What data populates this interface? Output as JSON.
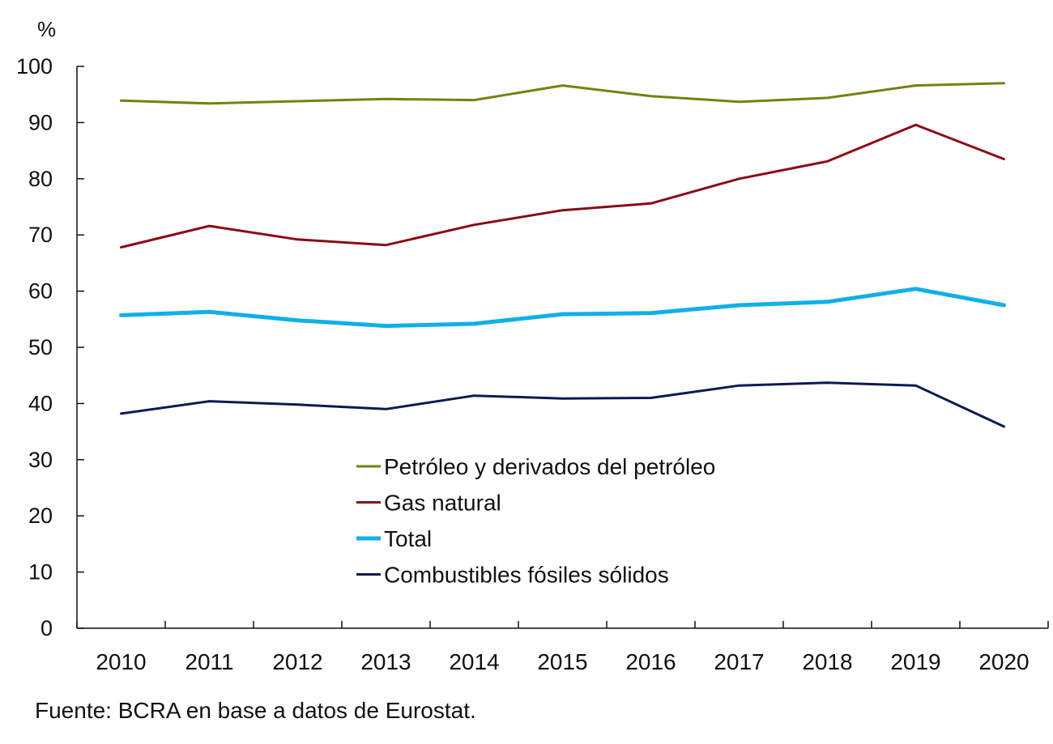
{
  "chart_data": {
    "type": "line",
    "y_unit": "%",
    "ylim": [
      0,
      100
    ],
    "y_ticks": [
      0,
      10,
      20,
      30,
      40,
      50,
      60,
      70,
      80,
      90,
      100
    ],
    "categories": [
      "2010",
      "2011",
      "2012",
      "2013",
      "2014",
      "2015",
      "2016",
      "2017",
      "2018",
      "2019",
      "2020"
    ],
    "grid": false,
    "legend_position": "center",
    "series": [
      {
        "name": "Petróleo y derivados del petróleo",
        "color": "#7a7f0c",
        "values": [
          93.9,
          93.4,
          93.8,
          94.2,
          94.0,
          96.6,
          94.7,
          93.7,
          94.4,
          96.6,
          97.0
        ]
      },
      {
        "name": "Gas natural",
        "color": "#8b0a14",
        "values": [
          67.8,
          71.6,
          69.2,
          68.2,
          71.8,
          74.4,
          75.6,
          80.0,
          83.1,
          89.6,
          83.5
        ]
      },
      {
        "name": "Total",
        "color": "#0fb0e8",
        "values": [
          55.7,
          56.3,
          54.8,
          53.8,
          54.2,
          55.9,
          56.1,
          57.5,
          58.1,
          60.4,
          57.5
        ]
      },
      {
        "name": "Combustibles fósiles sólidos",
        "color": "#0c1a52",
        "values": [
          38.2,
          40.4,
          39.8,
          39.0,
          41.4,
          40.9,
          41.0,
          43.2,
          43.7,
          43.2,
          35.9
        ]
      }
    ]
  },
  "source_note": "Fuente: BCRA en base a datos de Eurostat."
}
